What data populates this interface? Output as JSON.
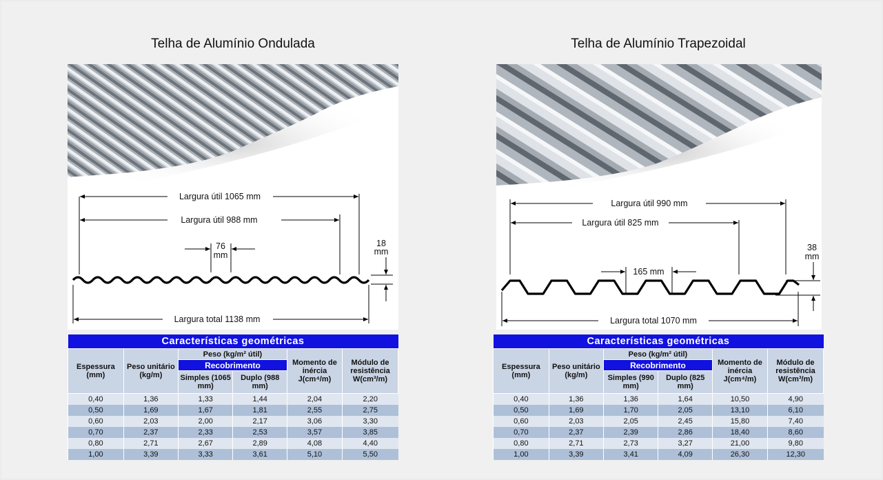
{
  "left": {
    "title": "Telha de Alumínio Ondulada",
    "dims": {
      "width_1065": "Largura útil 1065 mm",
      "width_988": "Largura útil 988 mm",
      "pitch_value": "76",
      "pitch_unit": "mm",
      "height_value": "18",
      "height_unit": "mm",
      "total": "Largura total 1138 mm"
    },
    "table": {
      "caption": "Características geométricas",
      "headers": {
        "thickness": "Espessura (mm)",
        "unit_weight": "Peso unitário (kg/m)",
        "weight": "Peso (kg/m² útil)",
        "overlap": "Recobrimento",
        "single": "Simples (1065 mm)",
        "double": "Duplo (988 mm)",
        "inertia": "Momento de inércia J(cm⁴/m)",
        "resistance": "Módulo de resistência W(cm³/m)"
      },
      "rows": [
        [
          "0,40",
          "1,36",
          "1,33",
          "1,44",
          "2,04",
          "2,20"
        ],
        [
          "0,50",
          "1,69",
          "1,67",
          "1,81",
          "2,55",
          "2,75"
        ],
        [
          "0,60",
          "2,03",
          "2,00",
          "2,17",
          "3,06",
          "3,30"
        ],
        [
          "0,70",
          "2,37",
          "2,33",
          "2,53",
          "3,57",
          "3,85"
        ],
        [
          "0,80",
          "2,71",
          "2,67",
          "2,89",
          "4,08",
          "4,40"
        ],
        [
          "1,00",
          "3,39",
          "3,33",
          "3,61",
          "5,10",
          "5,50"
        ]
      ]
    }
  },
  "right": {
    "title": "Telha de Alumínio Trapezoidal",
    "dims": {
      "width_990": "Largura útil 990 mm",
      "width_825": "Largura útil 825 mm",
      "pitch": "165 mm",
      "height_value": "38",
      "height_unit": "mm",
      "total": "Largura total 1070 mm"
    },
    "table": {
      "caption": "Características geométricas",
      "headers": {
        "thickness": "Espessura (mm)",
        "unit_weight": "Peso unitário (kg/m)",
        "weight": "Peso (kg/m² útil)",
        "overlap": "Recobrimento",
        "single": "Simples (990 mm)",
        "double": "Duplo (825 mm)",
        "inertia": "Momento de inércia J(cm⁴/m)",
        "resistance": "Módulo de resistência W(cm³/m)"
      },
      "rows": [
        [
          "0,40",
          "1,36",
          "1,36",
          "1,64",
          "10,50",
          "4,90"
        ],
        [
          "0,50",
          "1,69",
          "1,70",
          "2,05",
          "13,10",
          "6,10"
        ],
        [
          "0,60",
          "2,03",
          "2,05",
          "2,45",
          "15,80",
          "7,40"
        ],
        [
          "0,70",
          "2,37",
          "2,39",
          "2,86",
          "18,40",
          "8,60"
        ],
        [
          "0,80",
          "2,71",
          "2,73",
          "3,27",
          "21,00",
          "9,80"
        ],
        [
          "1,00",
          "3,39",
          "3,41",
          "4,09",
          "26,30",
          "12,30"
        ]
      ]
    }
  }
}
